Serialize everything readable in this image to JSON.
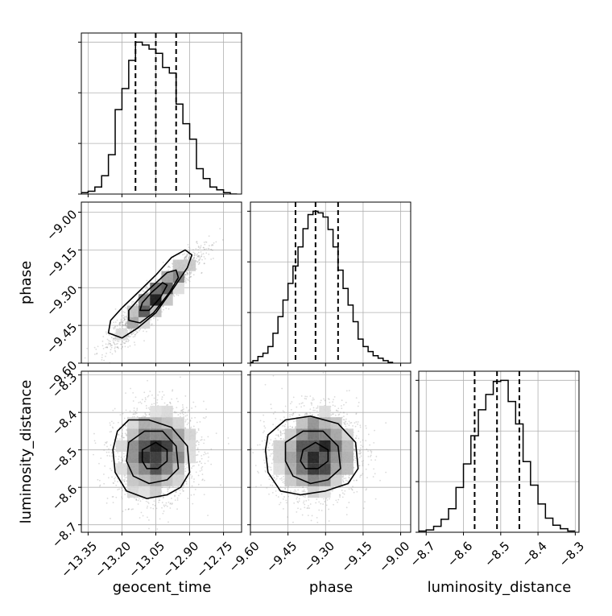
{
  "chart_data": {
    "type": "corner",
    "parameters": [
      "geocent_time",
      "phase",
      "luminosity_distance"
    ],
    "grid": true,
    "line_color": "#000000",
    "point_color": "#999999",
    "axes": {
      "geocent_time": {
        "range": [
          -13.38,
          -12.67
        ],
        "ticks": [
          -13.35,
          -13.2,
          -13.05,
          -12.9,
          -12.75
        ],
        "tick_labels": [
          "−13.35",
          "−13.20",
          "−13.05",
          "−12.90",
          "−12.75"
        ],
        "quantiles": [
          -13.14,
          -13.05,
          -12.96
        ]
      },
      "phase": {
        "range": [
          -9.6,
          -8.96
        ],
        "ticks": [
          -9.6,
          -9.45,
          -9.3,
          -9.15,
          -9.0
        ],
        "tick_labels": [
          "−9.60",
          "−9.45",
          "−9.30",
          "−9.15",
          "−9.00"
        ],
        "quantiles": [
          -9.42,
          -9.34,
          -9.25
        ]
      },
      "luminosity_distance": {
        "range": [
          -8.72,
          -8.29
        ],
        "ticks": [
          -8.7,
          -8.6,
          -8.5,
          -8.4,
          -8.3
        ],
        "tick_labels": [
          "−8.7",
          "−8.6",
          "−8.5",
          "−8.4",
          "−8.3"
        ],
        "quantiles": [
          -8.57,
          -8.51,
          -8.45
        ]
      }
    },
    "histograms": [
      {
        "parameter": "geocent_time",
        "bin_edges": [
          -13.38,
          -13.35,
          -13.32,
          -13.29,
          -13.26,
          -13.23,
          -13.2,
          -13.17,
          -13.14,
          -13.11,
          -13.08,
          -13.05,
          -13.02,
          -12.99,
          -12.96,
          -12.93,
          -12.9,
          -12.87,
          -12.84,
          -12.81,
          -12.78,
          -12.75,
          -12.72,
          -12.69
        ],
        "counts": [
          1,
          2,
          5,
          13,
          28,
          60,
          75,
          95,
          108,
          106,
          103,
          100,
          90,
          86,
          64,
          50,
          39,
          18,
          11,
          5,
          3,
          1,
          0
        ]
      },
      {
        "parameter": "phase",
        "bin_edges": [
          -9.61,
          -9.59,
          -9.57,
          -9.55,
          -9.53,
          -9.51,
          -9.49,
          -9.47,
          -9.45,
          -9.43,
          -9.41,
          -9.39,
          -9.37,
          -9.35,
          -9.33,
          -9.31,
          -9.29,
          -9.27,
          -9.25,
          -9.23,
          -9.21,
          -9.19,
          -9.17,
          -9.15,
          -9.13,
          -9.11,
          -9.09,
          -9.07,
          -9.05,
          -9.03
        ],
        "counts": [
          1,
          3,
          8,
          12,
          20,
          36,
          56,
          76,
          96,
          117,
          140,
          162,
          179,
          183,
          181,
          176,
          161,
          140,
          112,
          90,
          70,
          50,
          29,
          20,
          14,
          9,
          6,
          3,
          1
        ]
      },
      {
        "parameter": "luminosity_distance",
        "bin_edges": [
          -8.72,
          -8.7,
          -8.68,
          -8.66,
          -8.64,
          -8.62,
          -8.6,
          -8.58,
          -8.56,
          -8.54,
          -8.52,
          -8.5,
          -8.48,
          -8.46,
          -8.44,
          -8.42,
          -8.4,
          -8.38,
          -8.36,
          -8.34,
          -8.32,
          -8.3
        ],
        "counts": [
          1,
          2,
          5,
          11,
          20,
          38,
          58,
          82,
          104,
          117,
          128,
          129,
          111,
          92,
          60,
          40,
          24,
          12,
          6,
          3,
          1
        ]
      }
    ],
    "scatter_panels": [
      {
        "x": "geocent_time",
        "y": "phase",
        "mean": [
          -13.05,
          -9.34
        ],
        "std": [
          0.09,
          0.085
        ],
        "correlation": 0.93,
        "contours": [
          [
            [
              -13.26,
              -9.48
            ],
            [
              -13.2,
              -9.5
            ],
            [
              -13.13,
              -9.46
            ],
            [
              -13.05,
              -9.4
            ],
            [
              -12.97,
              -9.3
            ],
            [
              -12.91,
              -9.22
            ],
            [
              -12.89,
              -9.17
            ],
            [
              -12.92,
              -9.15
            ],
            [
              -12.98,
              -9.18
            ],
            [
              -13.05,
              -9.25
            ],
            [
              -13.13,
              -9.32
            ],
            [
              -13.2,
              -9.38
            ],
            [
              -13.25,
              -9.43
            ]
          ],
          [
            [
              -13.17,
              -9.43
            ],
            [
              -13.12,
              -9.44
            ],
            [
              -13.06,
              -9.4
            ],
            [
              -12.99,
              -9.32
            ],
            [
              -12.95,
              -9.26
            ],
            [
              -12.96,
              -9.23
            ],
            [
              -13.0,
              -9.24
            ],
            [
              -13.06,
              -9.29
            ],
            [
              -13.12,
              -9.34
            ],
            [
              -13.17,
              -9.39
            ]
          ],
          [
            [
              -13.12,
              -9.39
            ],
            [
              -13.08,
              -9.39
            ],
            [
              -13.03,
              -9.34
            ],
            [
              -13.0,
              -9.29
            ],
            [
              -13.02,
              -9.28
            ],
            [
              -13.07,
              -9.32
            ],
            [
              -13.11,
              -9.36
            ]
          ]
        ]
      },
      {
        "x": "geocent_time",
        "y": "luminosity_distance",
        "mean": [
          -13.05,
          -8.51
        ],
        "std": [
          0.09,
          0.06
        ],
        "correlation": 0.1,
        "contours": [
          [
            [
              -13.22,
              -8.45
            ],
            [
              -13.17,
              -8.42
            ],
            [
              -13.08,
              -8.42
            ],
            [
              -12.98,
              -8.44
            ],
            [
              -12.91,
              -8.49
            ],
            [
              -12.9,
              -8.56
            ],
            [
              -12.94,
              -8.6
            ],
            [
              -13.0,
              -8.62
            ],
            [
              -13.09,
              -8.63
            ],
            [
              -13.18,
              -8.61
            ],
            [
              -13.23,
              -8.56
            ],
            [
              -13.24,
              -8.5
            ]
          ],
          [
            [
              -13.17,
              -8.48
            ],
            [
              -13.1,
              -8.45
            ],
            [
              -13.02,
              -8.45
            ],
            [
              -12.96,
              -8.49
            ],
            [
              -12.95,
              -8.55
            ],
            [
              -13.0,
              -8.58
            ],
            [
              -13.08,
              -8.59
            ],
            [
              -13.15,
              -8.57
            ],
            [
              -13.18,
              -8.53
            ]
          ],
          [
            [
              -13.11,
              -8.5
            ],
            [
              -13.05,
              -8.48
            ],
            [
              -13.0,
              -8.5
            ],
            [
              -13.0,
              -8.53
            ],
            [
              -13.04,
              -8.55
            ],
            [
              -13.09,
              -8.55
            ],
            [
              -13.11,
              -8.53
            ]
          ]
        ]
      },
      {
        "x": "phase",
        "y": "luminosity_distance",
        "mean": [
          -9.34,
          -8.51
        ],
        "std": [
          0.085,
          0.06
        ],
        "correlation": 0.05,
        "contours": [
          [
            [
              -9.53,
              -8.46
            ],
            [
              -9.46,
              -8.42
            ],
            [
              -9.36,
              -8.41
            ],
            [
              -9.25,
              -8.43
            ],
            [
              -9.18,
              -8.48
            ],
            [
              -9.17,
              -8.55
            ],
            [
              -9.21,
              -8.59
            ],
            [
              -9.3,
              -8.61
            ],
            [
              -9.4,
              -8.62
            ],
            [
              -9.48,
              -8.61
            ],
            [
              -9.53,
              -8.56
            ],
            [
              -9.54,
              -8.5
            ]
          ],
          [
            [
              -9.46,
              -8.48
            ],
            [
              -9.39,
              -8.45
            ],
            [
              -9.31,
              -8.45
            ],
            [
              -9.25,
              -8.49
            ],
            [
              -9.24,
              -8.55
            ],
            [
              -9.29,
              -8.58
            ],
            [
              -9.36,
              -8.59
            ],
            [
              -9.43,
              -8.57
            ],
            [
              -9.46,
              -8.53
            ]
          ],
          [
            [
              -9.39,
              -8.5
            ],
            [
              -9.34,
              -8.48
            ],
            [
              -9.29,
              -8.5
            ],
            [
              -9.29,
              -8.53
            ],
            [
              -9.33,
              -8.55
            ],
            [
              -9.38,
              -8.55
            ],
            [
              -9.4,
              -8.53
            ]
          ]
        ]
      }
    ]
  }
}
